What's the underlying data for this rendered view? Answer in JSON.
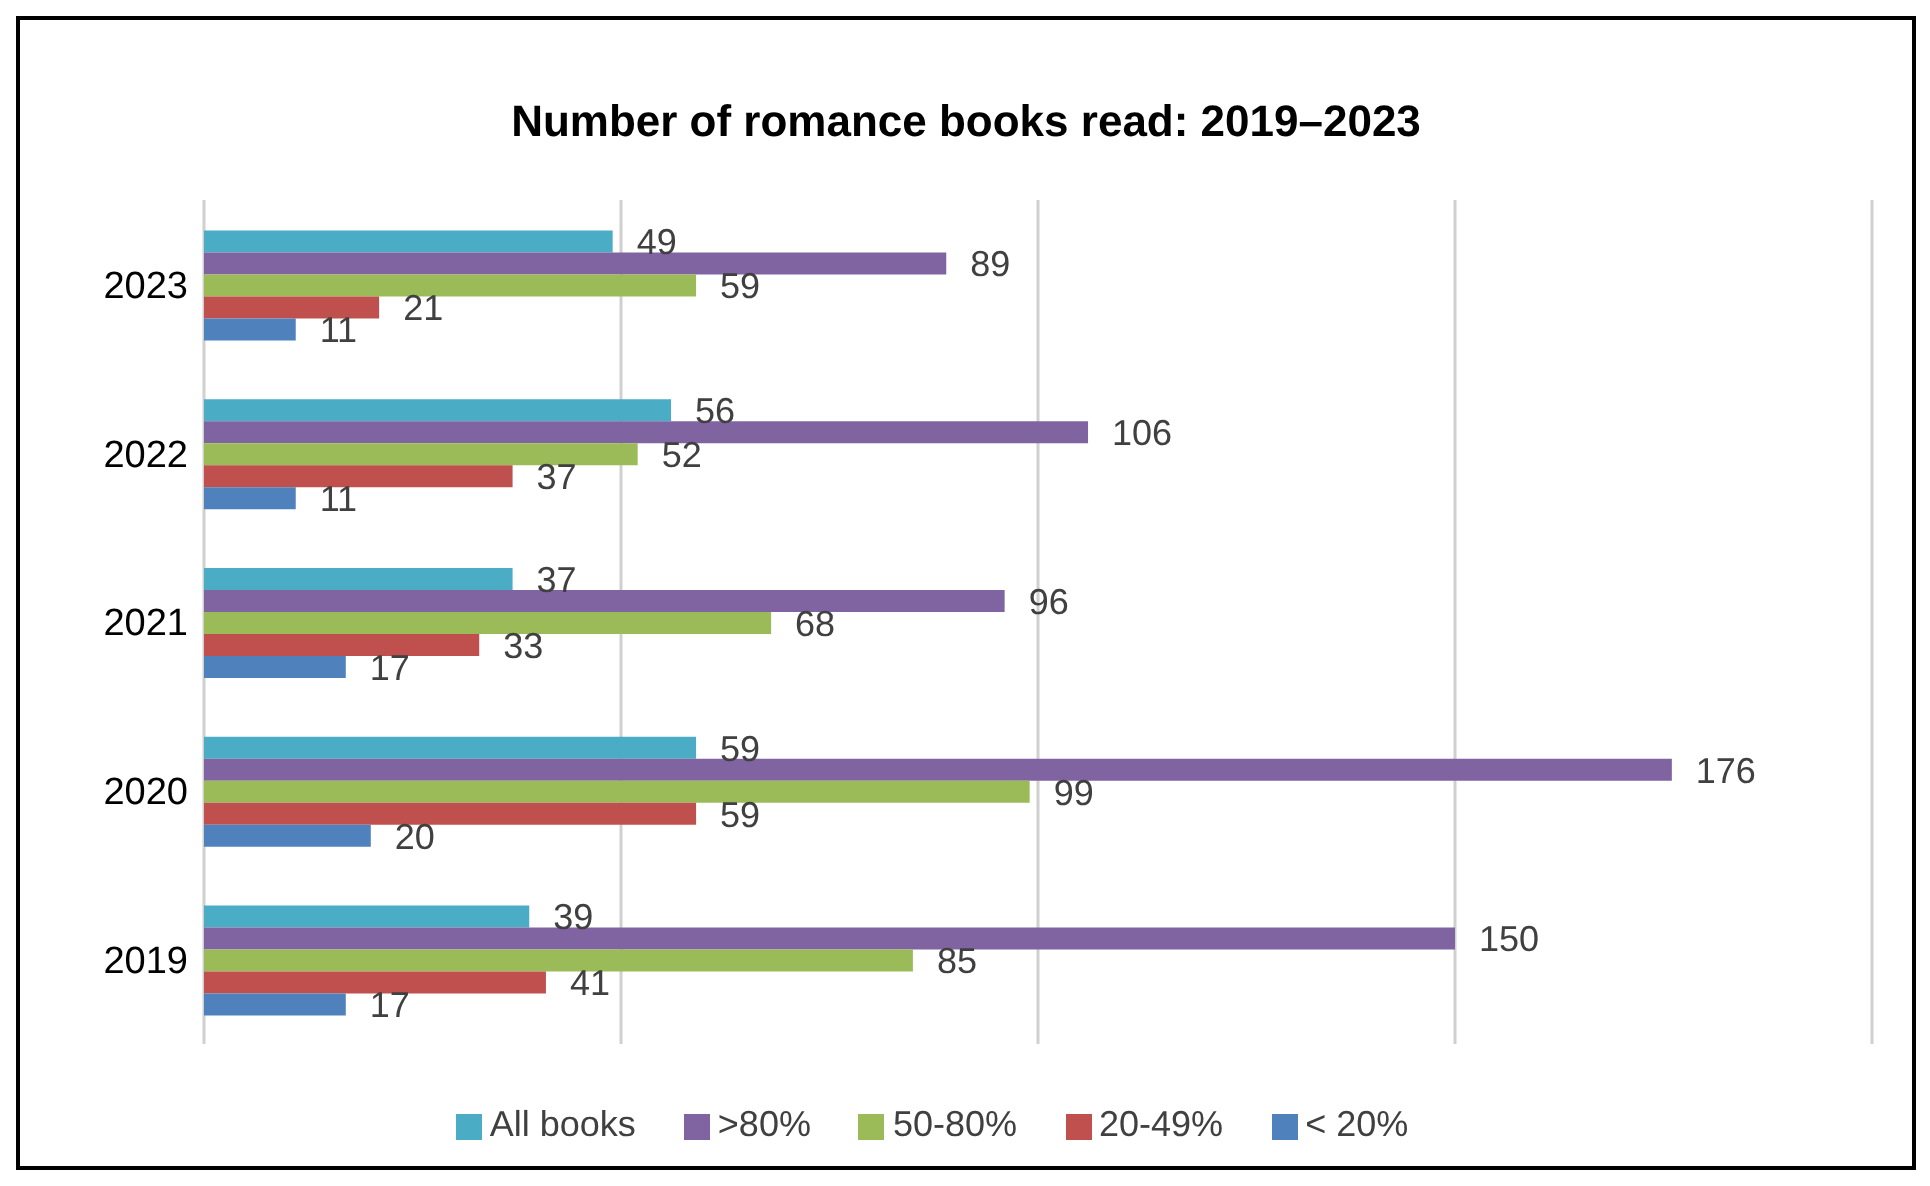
{
  "chart_data": {
    "type": "bar",
    "orientation": "horizontal",
    "title": "Number of romance books read: 2019–2023",
    "categories": [
      "2023",
      "2022",
      "2021",
      "2020",
      "2019"
    ],
    "series": [
      {
        "name": "All books",
        "color": "#4bacc6",
        "values": [
          49,
          56,
          37,
          59,
          39
        ]
      },
      {
        "name": ">80%",
        "color": "#8064a2",
        "values": [
          89,
          106,
          96,
          176,
          150
        ]
      },
      {
        "name": "50-80%",
        "color": "#9bbb59",
        "values": [
          59,
          52,
          68,
          99,
          85
        ]
      },
      {
        "name": "20-49%",
        "color": "#c0504d",
        "values": [
          21,
          37,
          33,
          59,
          41
        ]
      },
      {
        "name": "< 20%",
        "color": "#4f81bd",
        "values": [
          11,
          11,
          17,
          20,
          17
        ]
      }
    ],
    "xlim": [
      0,
      200
    ],
    "xticks": [
      {
        "value": 0,
        "label": null
      },
      {
        "value": 50,
        "label": null
      },
      {
        "value": 100,
        "label": null
      },
      {
        "value": 150,
        "label": null
      },
      {
        "value": 200,
        "label": null
      }
    ],
    "tick_labels": "y",
    "grid": "x",
    "legend": "bottom",
    "data_labels": true
  }
}
